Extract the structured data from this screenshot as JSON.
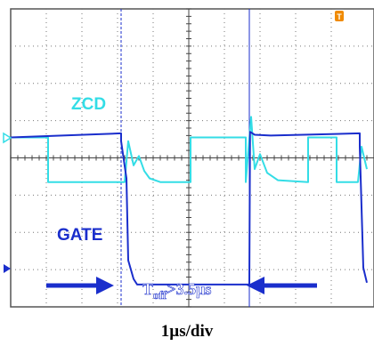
{
  "chart_data": {
    "type": "line",
    "time_per_division": "1µs/div",
    "x_unit": "µs",
    "x_range": [
      0,
      10
    ],
    "grid": true,
    "series": [
      {
        "name": "ZCD",
        "color": "#33dde6",
        "points": [
          [
            0.0,
            0.55
          ],
          [
            1.05,
            0.55
          ],
          [
            1.05,
            -0.65
          ],
          [
            3.2,
            -0.65
          ],
          [
            3.3,
            0.45
          ],
          [
            3.45,
            -0.2
          ],
          [
            3.6,
            0.05
          ],
          [
            3.75,
            -0.35
          ],
          [
            3.9,
            -0.55
          ],
          [
            4.2,
            -0.65
          ],
          [
            5.05,
            -0.65
          ],
          [
            5.05,
            0.55
          ],
          [
            6.6,
            0.55
          ],
          [
            6.6,
            -0.65
          ],
          [
            6.75,
            1.1
          ],
          [
            6.85,
            -0.3
          ],
          [
            7.0,
            0.1
          ],
          [
            7.2,
            -0.4
          ],
          [
            7.5,
            -0.6
          ],
          [
            8.35,
            -0.65
          ],
          [
            8.35,
            0.55
          ],
          [
            9.15,
            0.55
          ],
          [
            9.15,
            -0.65
          ],
          [
            9.75,
            -0.65
          ],
          [
            9.85,
            0.3
          ],
          [
            10.0,
            -0.3
          ]
        ]
      },
      {
        "name": "GATE",
        "color": "#1a2ecc",
        "points": [
          [
            0.0,
            0.55
          ],
          [
            3.1,
            0.66
          ],
          [
            3.1,
            0.45
          ],
          [
            3.25,
            -0.55
          ],
          [
            3.3,
            -2.75
          ],
          [
            3.45,
            -3.25
          ],
          [
            3.55,
            -3.4
          ],
          [
            6.7,
            -3.4
          ],
          [
            6.72,
            0.7
          ],
          [
            6.85,
            0.62
          ],
          [
            7.3,
            0.6
          ],
          [
            9.8,
            0.66
          ],
          [
            9.8,
            0.3
          ],
          [
            9.9,
            -2.95
          ],
          [
            10.0,
            -3.35
          ]
        ]
      }
    ],
    "annotations": {
      "zcd_label": "ZCD",
      "gate_label": "GATE",
      "toff_main": "T",
      "toff_sub": "off",
      "toff_rest": ">3.5µs"
    },
    "cursor_times_us": [
      3.1,
      6.7
    ]
  },
  "caption": "1µs/div"
}
